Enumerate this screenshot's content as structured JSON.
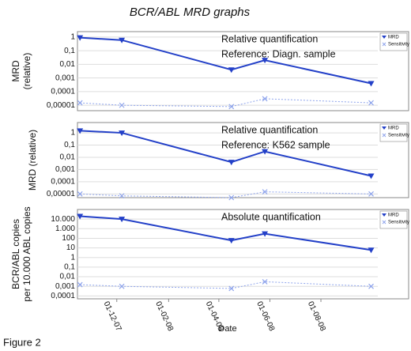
{
  "title": "BCR/ABL MRD graphs",
  "caption": "Figure 2",
  "chart_data": [
    {
      "type": "line",
      "log_y": true,
      "grid": true,
      "legend": "upper right",
      "ylabel": [
        "MRD",
        "(relative)"
      ],
      "annotation": [
        "Relative quantification",
        "Reference: Diagn. sample"
      ],
      "x": [
        "2007-10-18",
        "2007-12-07",
        "2008-04-16",
        "2008-05-26",
        "2008-09-30"
      ],
      "xlim": [
        "2007-10-15",
        "2008-10-08"
      ],
      "ylim": [
        4e-06,
        2.5
      ],
      "yticks": [
        1,
        {
          "value": 0.1,
          "label": "0,1"
        },
        {
          "value": 0.01,
          "label": "0,01"
        },
        {
          "value": 0.001,
          "label": "0,001"
        },
        {
          "value": 0.0001,
          "label": "0,0001"
        },
        {
          "value": 1e-05,
          "label": "0,00001"
        }
      ],
      "series": [
        {
          "name": "MRD",
          "color": "#2340c8",
          "marker": "triangle",
          "values": [
            0.9,
            0.6,
            0.004,
            0.02,
            0.0004
          ]
        },
        {
          "name": "Sensitivity",
          "color": "#8ea4ec",
          "marker": "x",
          "values": [
            1.5e-05,
            1e-05,
            8e-06,
            3e-05,
            1.5e-05
          ]
        }
      ]
    },
    {
      "type": "line",
      "log_y": true,
      "grid": true,
      "legend": "upper right",
      "ylabel": [
        "MRD (relative)"
      ],
      "annotation": [
        "Relative quantification",
        "Reference: K562 sample"
      ],
      "x": [
        "2007-10-18",
        "2007-12-07",
        "2008-04-16",
        "2008-05-26",
        "2008-09-30"
      ],
      "xlim": [
        "2007-10-15",
        "2008-10-08"
      ],
      "ylim": [
        5e-06,
        7
      ],
      "yticks": [
        1,
        {
          "value": 0.1,
          "label": "0,1"
        },
        {
          "value": 0.01,
          "label": "0,01"
        },
        {
          "value": 0.001,
          "label": "0,001"
        },
        {
          "value": 0.0001,
          "label": "0,0001"
        },
        {
          "value": 1e-05,
          "label": "0,00001"
        }
      ],
      "series": [
        {
          "name": "MRD",
          "color": "#2340c8",
          "marker": "triangle",
          "values": [
            1.5,
            1,
            0.004,
            0.03,
            0.0003
          ]
        },
        {
          "name": "Sensitivity",
          "color": "#8ea4ec",
          "marker": "x",
          "values": [
            1e-05,
            7e-06,
            5e-06,
            1.5e-05,
            1e-05
          ]
        }
      ]
    },
    {
      "type": "line",
      "log_y": true,
      "grid": true,
      "legend": "upper right",
      "ylabel": [
        "BCR/ABL copies",
        "per 10.000 ABL copies"
      ],
      "annotation": [
        "Absolute quantification"
      ],
      "xlabel": "Date",
      "x": [
        "2007-10-18",
        "2007-12-07",
        "2008-04-16",
        "2008-05-26",
        "2008-09-30"
      ],
      "xlim": [
        "2007-10-15",
        "2008-10-08"
      ],
      "xticks": [
        {
          "value": "2007-12-01",
          "label": "01-12-07"
        },
        {
          "value": "2008-02-01",
          "label": "01-02-08"
        },
        {
          "value": "2008-04-01",
          "label": "01-04-08"
        },
        {
          "value": "2008-06-01",
          "label": "01-06-08"
        },
        {
          "value": "2008-08-01",
          "label": "01-08-08"
        }
      ],
      "ylim": [
        5e-05,
        100000
      ],
      "yticks": [
        {
          "value": 10000,
          "label": "10.000"
        },
        {
          "value": 1000,
          "label": "1.000"
        },
        100,
        10,
        1,
        {
          "value": 0.1,
          "label": "0,1"
        },
        {
          "value": 0.01,
          "label": "0,01"
        },
        {
          "value": 0.001,
          "label": "0,001"
        },
        {
          "value": 0.0001,
          "label": "0,0001"
        }
      ],
      "series": [
        {
          "name": "MRD",
          "color": "#2340c8",
          "marker": "triangle",
          "values": [
            20000,
            10000,
            60,
            300,
            6
          ]
        },
        {
          "name": "Sensitivity",
          "color": "#8ea4ec",
          "marker": "x",
          "values": [
            0.0015,
            0.001,
            0.0006,
            0.003,
            0.001
          ]
        }
      ]
    }
  ]
}
